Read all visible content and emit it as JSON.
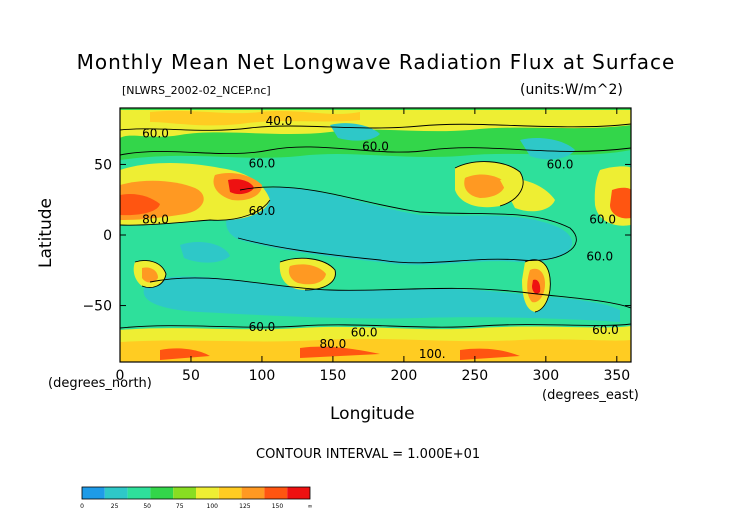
{
  "chart_data": {
    "type": "heatmap",
    "title": "Monthly Mean Net Longwave Radiation Flux at Surface",
    "subtitle_left": "[NLWRS_2002-02_NCEP.nc]",
    "subtitle_right": "(units:W/m^2)",
    "xlabel": "Longitude",
    "ylabel": "Latitude",
    "x_unit": "(degrees_east)",
    "y_unit": "(degrees_north)",
    "xlim": [
      0,
      360
    ],
    "ylim": [
      -90,
      90
    ],
    "x_ticks": [
      0,
      50,
      100,
      150,
      200,
      250,
      300,
      350
    ],
    "y_ticks": [
      50,
      0,
      -50
    ],
    "x_tick_labels": [
      "0",
      "50",
      "100",
      "150",
      "200",
      "250",
      "300",
      "350"
    ],
    "y_tick_labels": [
      "50",
      "0",
      "−50"
    ],
    "contour_interval_text": "CONTOUR INTERVAL = 1.000E+01",
    "contour_labels": [
      {
        "text": "40.0",
        "lon": 112,
        "lat": 78
      },
      {
        "text": "60.0",
        "lon": 25,
        "lat": 69
      },
      {
        "text": "60.0",
        "lon": 180,
        "lat": 60
      },
      {
        "text": "60.0",
        "lon": 100,
        "lat": 48
      },
      {
        "text": "60.0",
        "lon": 310,
        "lat": 47
      },
      {
        "text": "80.0",
        "lon": 25,
        "lat": 8
      },
      {
        "text": "60.0",
        "lon": 100,
        "lat": 14
      },
      {
        "text": "60.0",
        "lon": 340,
        "lat": 8
      },
      {
        "text": "60.0",
        "lon": 338,
        "lat": -18
      },
      {
        "text": "60.0",
        "lon": 100,
        "lat": -68
      },
      {
        "text": "60.0",
        "lon": 172,
        "lat": -72
      },
      {
        "text": "80.0",
        "lon": 150,
        "lat": -80
      },
      {
        "text": "60.0",
        "lon": 342,
        "lat": -70
      },
      {
        "text": "100.",
        "lon": 220,
        "lat": -87
      }
    ],
    "colorbar": {
      "tick_labels": [
        "0",
        "25",
        "50",
        "75",
        "100",
        "125",
        "150",
        "∞"
      ],
      "colors": [
        "#1e9be8",
        "#2ec8c8",
        "#2ee09b",
        "#33d64a",
        "#88dd22",
        "#eeee33",
        "#ffcc22",
        "#ff9922",
        "#ff5511",
        "#ee1111"
      ]
    },
    "grid": false,
    "legend": "none"
  }
}
